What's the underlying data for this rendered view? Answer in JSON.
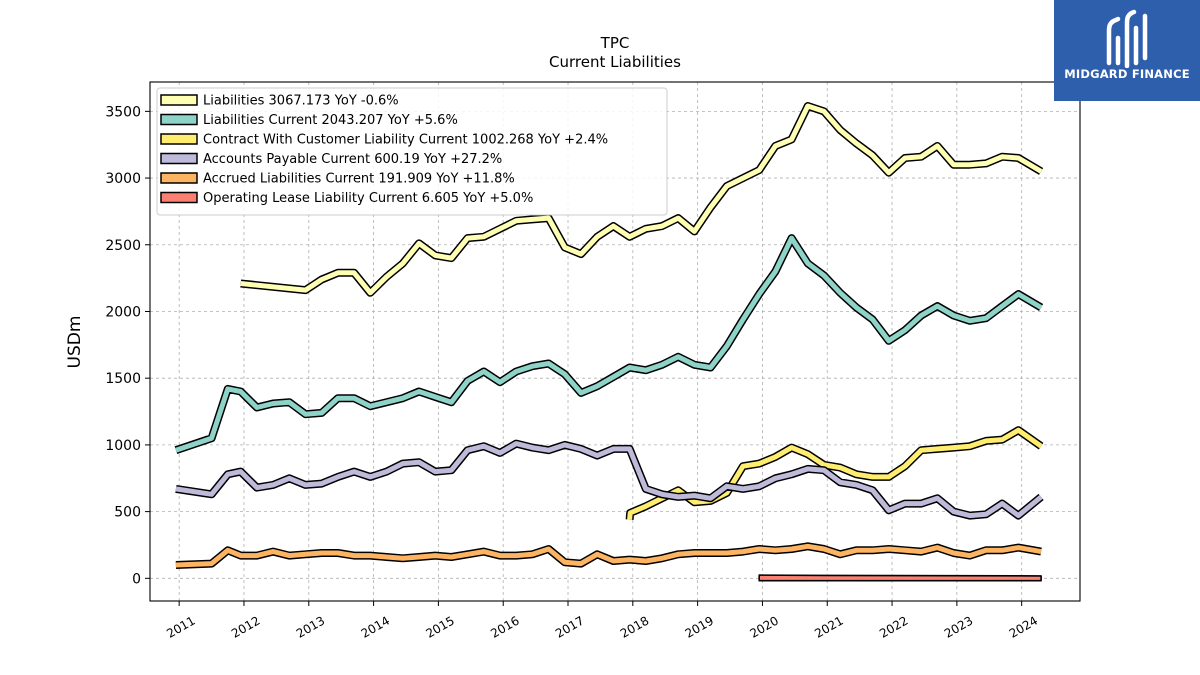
{
  "chart_data": {
    "type": "line",
    "title": "TPC",
    "subtitle": "Current  Liabilities",
    "ylabel": "USDm",
    "xlabel": "",
    "x_range": [
      2010.55,
      2024.9
    ],
    "ylim": [
      -170,
      3720
    ],
    "y_ticks": [
      0,
      500,
      1000,
      1500,
      2000,
      2500,
      3000,
      3500
    ],
    "x_ticks": [
      2011,
      2012,
      2013,
      2014,
      2015,
      2016,
      2017,
      2018,
      2019,
      2020,
      2021,
      2022,
      2023,
      2024
    ],
    "x_tick_labels": [
      "2011",
      "2012",
      "2013",
      "2014",
      "2015",
      "2016",
      "2017",
      "2018",
      "2019",
      "2020",
      "2021",
      "2022",
      "2023",
      "2024"
    ],
    "grid": true,
    "legend_position": "upper-left",
    "series": [
      {
        "name": "Liabilities",
        "legend_label": "Liabilities  3067.173 YoY -0.6%",
        "color": "#ffffb3",
        "x": [
          2011.95,
          2012.95,
          2013.2,
          2013.45,
          2013.7,
          2013.95,
          2014.2,
          2014.45,
          2014.7,
          2014.95,
          2015.2,
          2015.45,
          2015.7,
          2015.95,
          2016.2,
          2016.45,
          2016.7,
          2016.95,
          2017.2,
          2017.45,
          2017.7,
          2017.95,
          2018.2,
          2018.45,
          2018.7,
          2018.95,
          2019.2,
          2019.45,
          2019.7,
          2019.95,
          2020.2,
          2020.45,
          2020.7,
          2020.95,
          2021.2,
          2021.45,
          2021.7,
          2021.95,
          2022.2,
          2022.45,
          2022.7,
          2022.95,
          2023.2,
          2023.45,
          2023.7,
          2023.95,
          2024.3
        ],
        "y": [
          2210,
          2160,
          2240,
          2290,
          2290,
          2140,
          2260,
          2360,
          2510,
          2420,
          2400,
          2550,
          2560,
          2620,
          2680,
          2690,
          2700,
          2480,
          2430,
          2560,
          2640,
          2560,
          2620,
          2640,
          2700,
          2600,
          2780,
          2940,
          3000,
          3060,
          3240,
          3290,
          3540,
          3500,
          3360,
          3260,
          3170,
          3040,
          3150,
          3160,
          3240,
          3100,
          3100,
          3110,
          3160,
          3150,
          3050
        ]
      },
      {
        "name": "Liabilities Current",
        "legend_label": "Liabilities Current  2043.207 YoY +5.6%",
        "color": "#8dd3c7",
        "x": [
          2010.95,
          2011.5,
          2011.75,
          2011.95,
          2012.2,
          2012.45,
          2012.7,
          2012.95,
          2013.2,
          2013.45,
          2013.7,
          2013.95,
          2014.2,
          2014.45,
          2014.7,
          2014.95,
          2015.2,
          2015.45,
          2015.7,
          2015.95,
          2016.2,
          2016.45,
          2016.7,
          2016.95,
          2017.2,
          2017.45,
          2017.7,
          2017.95,
          2018.2,
          2018.45,
          2018.7,
          2018.95,
          2019.2,
          2019.45,
          2019.7,
          2019.95,
          2020.2,
          2020.45,
          2020.7,
          2020.95,
          2021.2,
          2021.45,
          2021.7,
          2021.95,
          2022.2,
          2022.45,
          2022.7,
          2022.95,
          2023.2,
          2023.45,
          2023.7,
          2023.95,
          2024.3
        ],
        "y": [
          960,
          1050,
          1420,
          1400,
          1280,
          1310,
          1320,
          1230,
          1240,
          1350,
          1350,
          1290,
          1320,
          1350,
          1400,
          1360,
          1320,
          1480,
          1550,
          1470,
          1550,
          1590,
          1610,
          1530,
          1390,
          1440,
          1510,
          1580,
          1560,
          1600,
          1660,
          1600,
          1580,
          1740,
          1940,
          2130,
          2300,
          2550,
          2360,
          2270,
          2140,
          2030,
          1940,
          1780,
          1860,
          1970,
          2040,
          1970,
          1930,
          1950,
          2040,
          2130,
          2030
        ]
      },
      {
        "name": "Contract With Customer Liability Current",
        "legend_label": "Contract With Customer Liability Current  1002.268 YoY +2.4%",
        "color": "#ffed6f",
        "x": [
          2017.95,
          2017.96,
          2018.2,
          2018.45,
          2018.7,
          2018.95,
          2019.2,
          2019.45,
          2019.7,
          2019.95,
          2020.2,
          2020.45,
          2020.7,
          2020.95,
          2021.2,
          2021.45,
          2021.7,
          2021.95,
          2022.2,
          2022.45,
          2022.7,
          2022.95,
          2023.2,
          2023.45,
          2023.7,
          2023.95,
          2024.3
        ],
        "y": [
          440,
          490,
          540,
          600,
          660,
          570,
          580,
          640,
          840,
          860,
          910,
          980,
          930,
          850,
          830,
          780,
          760,
          760,
          840,
          960,
          970,
          980,
          990,
          1030,
          1040,
          1110,
          990
        ]
      },
      {
        "name": "Accounts Payable Current",
        "legend_label": "Accounts Payable Current  600.19 YoY +27.2%",
        "color": "#bebada",
        "x": [
          2010.95,
          2011.5,
          2011.75,
          2011.95,
          2012.2,
          2012.45,
          2012.7,
          2012.95,
          2013.2,
          2013.45,
          2013.7,
          2013.95,
          2014.2,
          2014.45,
          2014.7,
          2014.95,
          2015.2,
          2015.45,
          2015.7,
          2015.95,
          2016.2,
          2016.45,
          2016.7,
          2016.95,
          2017.2,
          2017.45,
          2017.7,
          2017.95,
          2018.2,
          2018.45,
          2018.7,
          2018.95,
          2019.2,
          2019.45,
          2019.7,
          2019.95,
          2020.2,
          2020.45,
          2020.7,
          2020.95,
          2021.2,
          2021.45,
          2021.7,
          2021.95,
          2022.2,
          2022.45,
          2022.7,
          2022.95,
          2023.2,
          2023.45,
          2023.7,
          2023.95,
          2024.3
        ],
        "y": [
          670,
          630,
          780,
          800,
          680,
          700,
          750,
          700,
          710,
          760,
          800,
          760,
          800,
          860,
          870,
          800,
          810,
          960,
          990,
          940,
          1010,
          980,
          960,
          1000,
          970,
          920,
          970,
          970,
          670,
          630,
          610,
          620,
          600,
          690,
          670,
          690,
          750,
          780,
          820,
          810,
          720,
          700,
          660,
          510,
          560,
          560,
          600,
          500,
          470,
          480,
          560,
          470,
          610
        ]
      },
      {
        "name": "Accrued Liabilities Current",
        "legend_label": "Accrued Liabilities Current  191.909 YoY +11.8%",
        "color": "#fdb462",
        "x": [
          2010.95,
          2011.5,
          2011.75,
          2011.95,
          2012.2,
          2012.45,
          2012.7,
          2012.95,
          2013.2,
          2013.45,
          2013.7,
          2013.95,
          2014.2,
          2014.45,
          2014.7,
          2014.95,
          2015.2,
          2015.45,
          2015.7,
          2015.95,
          2016.2,
          2016.45,
          2016.7,
          2016.95,
          2017.2,
          2017.45,
          2017.7,
          2017.95,
          2018.2,
          2018.45,
          2018.7,
          2018.95,
          2019.2,
          2019.45,
          2019.7,
          2019.95,
          2020.2,
          2020.45,
          2020.7,
          2020.95,
          2021.2,
          2021.45,
          2021.7,
          2021.95,
          2022.2,
          2022.45,
          2022.7,
          2022.95,
          2023.2,
          2023.45,
          2023.7,
          2023.95,
          2024.3
        ],
        "y": [
          100,
          110,
          210,
          170,
          170,
          200,
          170,
          180,
          190,
          190,
          170,
          170,
          160,
          150,
          160,
          170,
          160,
          180,
          200,
          170,
          170,
          180,
          220,
          120,
          110,
          180,
          130,
          140,
          130,
          150,
          180,
          190,
          190,
          190,
          200,
          220,
          210,
          220,
          240,
          220,
          180,
          210,
          210,
          220,
          210,
          200,
          230,
          190,
          170,
          210,
          210,
          230,
          200
        ]
      },
      {
        "name": "Operating Lease Liability Current",
        "legend_label": "Operating Lease Liability Current  6.605 YoY +5.0%",
        "color": "#fb8072",
        "band_top": [
          2019.95,
          24,
          2020.95,
          22,
          2024.3,
          18
        ],
        "band_bottom": [
          2019.95,
          -18,
          2024.3,
          -18
        ]
      }
    ]
  },
  "logo": {
    "name": "MIDGARD FINANCE",
    "alt": "Midgard Finance logo"
  }
}
